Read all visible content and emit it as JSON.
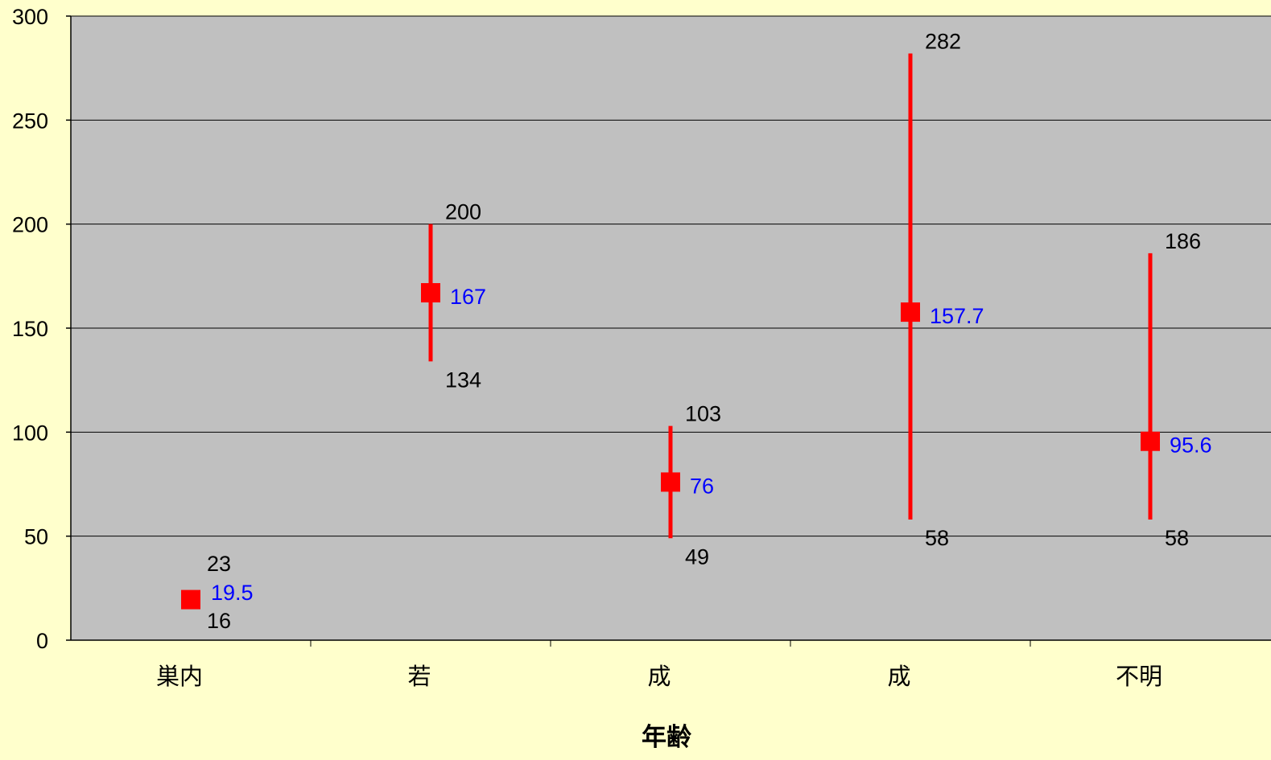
{
  "chart_data": {
    "type": "scatter",
    "title": "",
    "xlabel": "年齢",
    "ylabel": "",
    "ylim": [
      0,
      300
    ],
    "yticks": [
      0,
      50,
      100,
      150,
      200,
      250,
      300
    ],
    "grid": true,
    "legend": "none",
    "categories": [
      "巣内",
      "若",
      "成",
      "成",
      "不明"
    ],
    "mean": [
      19.5,
      167,
      76,
      157.7,
      95.6
    ],
    "max": [
      23,
      200,
      103,
      282,
      186
    ],
    "min": [
      16,
      134,
      49,
      58,
      58
    ],
    "mean_labels": [
      "19.5",
      "167",
      "76",
      "157.7",
      "95.6"
    ],
    "max_labels": [
      "23",
      "200",
      "103",
      "282",
      "186"
    ],
    "min_labels": [
      "16",
      "134",
      "49",
      "58",
      "58"
    ]
  },
  "colors": {
    "background": "#FFFFCC",
    "plot_area": "#C0C0C0",
    "marker": "#FF0000",
    "range_line": "#FF0000",
    "mean_label": "#0000FF",
    "bound_label": "#000000",
    "gridline": "#000000"
  }
}
